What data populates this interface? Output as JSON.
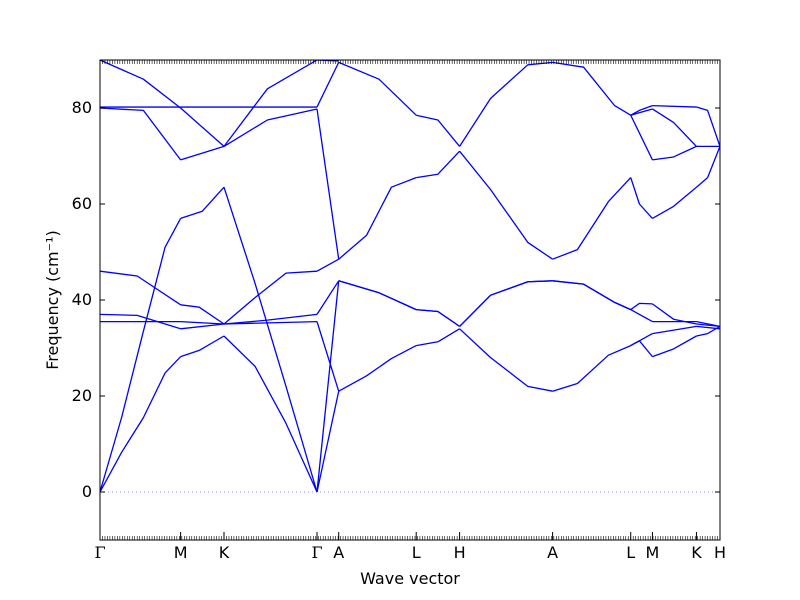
{
  "chart_data": {
    "type": "line",
    "title": "",
    "xlabel": "Wave vector",
    "ylabel": "Frequency (cm⁻¹)",
    "ylim": [
      -10,
      90
    ],
    "yticks": [
      0,
      20,
      40,
      60,
      80
    ],
    "grid": false,
    "line_color": "#0000ff",
    "zero_line_color": "#8888ff",
    "high_symmetry_points": [
      {
        "label": "Γ",
        "x": 0.0
      },
      {
        "label": "M",
        "x": 0.13
      },
      {
        "label": "K",
        "x": 0.2
      },
      {
        "label": "Γ",
        "x": 0.35
      },
      {
        "label": "A",
        "x": 0.385
      },
      {
        "label": "L",
        "x": 0.51
      },
      {
        "label": "H",
        "x": 0.58
      },
      {
        "label": "A",
        "x": 0.73
      },
      {
        "label": "L",
        "x": 0.856
      },
      {
        "label": "M",
        "x": 0.891
      },
      {
        "label": "K",
        "x": 0.962
      },
      {
        "label": "H",
        "x": 1.0
      }
    ],
    "xlim": [
      0,
      1
    ],
    "series": [
      {
        "segments": [
          [
            [
              0,
              0
            ],
            [
              0.035,
              8.3
            ],
            [
              0.07,
              15.5
            ],
            [
              0.105,
              24.8
            ],
            [
              0.13,
              28.2
            ]
          ],
          [
            [
              0.13,
              28.2
            ],
            [
              0.16,
              29.5
            ],
            [
              0.2,
              32.5
            ]
          ],
          [
            [
              0.2,
              32.5
            ],
            [
              0.25,
              26.2
            ],
            [
              0.3,
              14.3
            ],
            [
              0.35,
              0
            ]
          ],
          [
            [
              0.35,
              0
            ],
            [
              0.385,
              21
            ]
          ],
          [
            [
              0.385,
              21
            ],
            [
              0.43,
              24.2
            ],
            [
              0.47,
              27.8
            ],
            [
              0.51,
              30.5
            ]
          ],
          [
            [
              0.51,
              30.5
            ],
            [
              0.545,
              31.3
            ],
            [
              0.58,
              34
            ]
          ],
          [
            [
              0.58,
              34
            ],
            [
              0.63,
              28
            ],
            [
              0.69,
              22
            ],
            [
              0.73,
              21
            ]
          ],
          [
            [
              0.73,
              21
            ],
            [
              0.77,
              22.6
            ],
            [
              0.82,
              28.5
            ],
            [
              0.856,
              30.5
            ]
          ],
          [
            [
              0.856,
              30.5
            ],
            [
              0.87,
              31.5
            ],
            [
              0.891,
              28.2
            ]
          ],
          [
            [
              0.891,
              28.2
            ],
            [
              0.925,
              29.8
            ],
            [
              0.962,
              32.5
            ]
          ],
          [
            [
              0.962,
              32.5
            ],
            [
              0.98,
              33
            ],
            [
              1.0,
              34.5
            ]
          ]
        ]
      },
      {
        "segments": [
          [
            [
              0,
              0
            ],
            [
              0.035,
              15.6
            ],
            [
              0.07,
              33.5
            ],
            [
              0.105,
              51
            ],
            [
              0.13,
              57
            ]
          ],
          [
            [
              0.13,
              57
            ],
            [
              0.165,
              58.5
            ],
            [
              0.2,
              63.5
            ]
          ],
          [
            [
              0.2,
              63.5
            ],
            [
              0.25,
              43.5
            ],
            [
              0.3,
              22
            ],
            [
              0.35,
              0
            ]
          ],
          [
            [
              0.35,
              0
            ],
            [
              0.385,
              44
            ]
          ],
          [
            [
              0.385,
              44
            ],
            [
              0.45,
              41.5
            ],
            [
              0.51,
              38
            ]
          ],
          [
            [
              0.51,
              38
            ],
            [
              0.545,
              37.6
            ],
            [
              0.58,
              34.5
            ]
          ],
          [
            [
              0.58,
              34.5
            ],
            [
              0.63,
              41
            ],
            [
              0.69,
              43.8
            ],
            [
              0.73,
              44
            ]
          ],
          [
            [
              0.73,
              44
            ],
            [
              0.78,
              43.3
            ],
            [
              0.83,
              39.5
            ],
            [
              0.856,
              38
            ]
          ],
          [
            [
              0.856,
              38
            ],
            [
              0.87,
              39.3
            ],
            [
              0.891,
              39.2
            ]
          ],
          [
            [
              0.891,
              39.2
            ],
            [
              0.925,
              36
            ],
            [
              0.962,
              35
            ]
          ],
          [
            [
              0.962,
              35
            ],
            [
              1.0,
              34.5
            ]
          ]
        ]
      },
      {
        "segments": [
          [
            [
              0,
              46
            ],
            [
              0.06,
              45
            ],
            [
              0.13,
              39
            ]
          ],
          [
            [
              0.13,
              39
            ],
            [
              0.16,
              38.5
            ],
            [
              0.2,
              35
            ]
          ],
          [
            [
              0.2,
              35
            ],
            [
              0.25,
              40.5
            ],
            [
              0.3,
              45.6
            ],
            [
              0.35,
              46
            ]
          ],
          [
            [
              0.35,
              46
            ],
            [
              0.385,
              48.5
            ]
          ],
          [
            [
              0.385,
              48.5
            ],
            [
              0.43,
              53.5
            ],
            [
              0.47,
              63.5
            ],
            [
              0.51,
              65.5
            ]
          ],
          [
            [
              0.51,
              65.5
            ],
            [
              0.545,
              66.2
            ],
            [
              0.58,
              71
            ]
          ],
          [
            [
              0.58,
              71
            ],
            [
              0.63,
              63
            ],
            [
              0.69,
              52
            ],
            [
              0.73,
              48.5
            ]
          ],
          [
            [
              0.73,
              48.5
            ],
            [
              0.77,
              50.5
            ],
            [
              0.82,
              60.5
            ],
            [
              0.856,
              65.5
            ]
          ],
          [
            [
              0.856,
              65.5
            ],
            [
              0.87,
              60
            ],
            [
              0.891,
              57
            ]
          ],
          [
            [
              0.891,
              57
            ],
            [
              0.925,
              59.5
            ],
            [
              0.962,
              63.5
            ]
          ],
          [
            [
              0.962,
              63.5
            ],
            [
              0.98,
              65.5
            ],
            [
              1.0,
              72
            ]
          ]
        ]
      },
      {
        "segments": [
          [
            [
              0,
              37
            ],
            [
              0.06,
              36.8
            ],
            [
              0.13,
              34
            ]
          ],
          [
            [
              0.13,
              34
            ],
            [
              0.2,
              35
            ]
          ],
          [
            [
              0.2,
              35
            ],
            [
              0.27,
              35.8
            ],
            [
              0.35,
              37
            ]
          ],
          [
            [
              0.35,
              37
            ],
            [
              0.385,
              44
            ]
          ],
          [
            [
              0.385,
              44
            ],
            [
              0.45,
              41.5
            ],
            [
              0.51,
              38
            ]
          ],
          [
            [
              0.51,
              38
            ],
            [
              0.545,
              37.6
            ],
            [
              0.58,
              34.5
            ]
          ],
          [
            [
              0.58,
              34.5
            ],
            [
              0.63,
              41
            ],
            [
              0.69,
              43.8
            ],
            [
              0.73,
              44
            ]
          ],
          [
            [
              0.73,
              44
            ],
            [
              0.78,
              43.3
            ],
            [
              0.83,
              39.5
            ],
            [
              0.856,
              38
            ]
          ],
          [
            [
              0.856,
              38
            ],
            [
              0.891,
              35.5
            ]
          ],
          [
            [
              0.891,
              35.5
            ],
            [
              0.962,
              35.5
            ]
          ],
          [
            [
              0.962,
              35.5
            ],
            [
              1.0,
              34.5
            ]
          ]
        ]
      },
      {
        "segments": [
          [
            [
              0,
              35.5
            ],
            [
              0.13,
              35.5
            ]
          ],
          [
            [
              0.13,
              35.5
            ],
            [
              0.2,
              35
            ]
          ],
          [
            [
              0.2,
              35
            ],
            [
              0.35,
              35.5
            ]
          ],
          [
            [
              0.35,
              35.5
            ],
            [
              0.385,
              21
            ]
          ],
          [
            [
              0.856,
              30.5
            ],
            [
              0.891,
              33
            ]
          ],
          [
            [
              0.891,
              33
            ],
            [
              0.962,
              34.5
            ]
          ],
          [
            [
              0.962,
              34.5
            ],
            [
              1.0,
              34
            ]
          ]
        ]
      },
      {
        "segments": [
          [
            [
              0,
              80
            ],
            [
              0.07,
              79.5
            ],
            [
              0.13,
              69.2
            ]
          ],
          [
            [
              0.13,
              69.2
            ],
            [
              0.2,
              72
            ]
          ],
          [
            [
              0.2,
              72
            ],
            [
              0.27,
              77.5
            ],
            [
              0.35,
              79.8
            ]
          ],
          [
            [
              0.35,
              79.8
            ],
            [
              0.385,
              48.5
            ]
          ],
          [
            [
              0.856,
              78.5
            ],
            [
              0.891,
              69.2
            ]
          ],
          [
            [
              0.891,
              69.2
            ],
            [
              0.925,
              69.8
            ],
            [
              0.962,
              72
            ]
          ],
          [
            [
              0.962,
              72
            ],
            [
              1.0,
              72
            ]
          ]
        ]
      },
      {
        "segments": [
          [
            [
              0,
              80.2
            ],
            [
              0.13,
              80.2
            ]
          ],
          [
            [
              0.13,
              80.2
            ],
            [
              0.2,
              80.2
            ]
          ],
          [
            [
              0.2,
              80.2
            ],
            [
              0.35,
              80.2
            ]
          ],
          [
            [
              0.35,
              80.2
            ],
            [
              0.385,
              89.5
            ]
          ],
          [
            [
              0.385,
              89.5
            ],
            [
              0.45,
              86
            ],
            [
              0.51,
              78.5
            ]
          ],
          [
            [
              0.51,
              78.5
            ],
            [
              0.545,
              77.5
            ],
            [
              0.58,
              72
            ]
          ],
          [
            [
              0.58,
              72
            ],
            [
              0.63,
              82
            ],
            [
              0.69,
              89
            ],
            [
              0.73,
              89.5
            ]
          ],
          [
            [
              0.73,
              89.5
            ],
            [
              0.78,
              88.5
            ],
            [
              0.83,
              80.5
            ],
            [
              0.856,
              78.5
            ]
          ],
          [
            [
              0.856,
              78.5
            ],
            [
              0.87,
              79.5
            ],
            [
              0.891,
              80.5
            ]
          ],
          [
            [
              0.891,
              80.5
            ],
            [
              0.962,
              80.2
            ]
          ],
          [
            [
              0.962,
              80.2
            ],
            [
              0.98,
              79.5
            ],
            [
              1.0,
              72
            ]
          ]
        ]
      },
      {
        "segments": [
          [
            [
              0,
              90
            ],
            [
              0.07,
              86
            ],
            [
              0.13,
              80
            ]
          ],
          [
            [
              0.13,
              80
            ],
            [
              0.2,
              72
            ]
          ],
          [
            [
              0.2,
              72
            ],
            [
              0.27,
              84
            ],
            [
              0.35,
              90
            ]
          ],
          [
            [
              0.35,
              90
            ],
            [
              0.385,
              89.8
            ]
          ],
          [
            [
              0.856,
              78.5
            ],
            [
              0.891,
              79.8
            ]
          ],
          [
            [
              0.891,
              79.8
            ],
            [
              0.925,
              77
            ],
            [
              0.962,
              72
            ]
          ]
        ]
      }
    ]
  }
}
